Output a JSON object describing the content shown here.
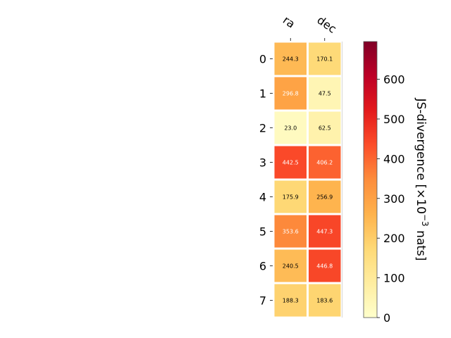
{
  "chart_data": {
    "type": "heatmap",
    "columns": [
      "ra",
      "dec"
    ],
    "rows": [
      "0",
      "1",
      "2",
      "3",
      "4",
      "5",
      "6",
      "7"
    ],
    "values": [
      [
        244.3,
        170.1
      ],
      [
        296.8,
        47.5
      ],
      [
        23.0,
        62.5
      ],
      [
        442.5,
        406.2
      ],
      [
        175.9,
        256.9
      ],
      [
        353.6,
        447.3
      ],
      [
        240.5,
        446.8
      ],
      [
        188.3,
        183.6
      ]
    ],
    "cell_labels": [
      [
        "244.3",
        "170.1"
      ],
      [
        "296.8",
        "47.5"
      ],
      [
        "23.0",
        "62.5"
      ],
      [
        "442.5",
        "406.2"
      ],
      [
        "175.9",
        "256.9"
      ],
      [
        "353.6",
        "447.3"
      ],
      [
        "240.5",
        "446.8"
      ],
      [
        "188.3",
        "183.6"
      ]
    ],
    "colorbar": {
      "label_main": "JS-divergence [×10",
      "label_exp": "−3",
      "label_unit": " nats]",
      "range": [
        0,
        695
      ],
      "ticks": [
        "0",
        "100",
        "200",
        "300",
        "400",
        "500",
        "600"
      ],
      "tick_values": [
        0,
        100,
        200,
        300,
        400,
        500,
        600
      ],
      "colormap": "YlOrRd",
      "colors": [
        "#ffffcc",
        "#ffeda0",
        "#fed976",
        "#feb24c",
        "#fd8d3c",
        "#fc4e2a",
        "#e31a1c",
        "#bd0026",
        "#800026"
      ]
    },
    "grid": false
  }
}
